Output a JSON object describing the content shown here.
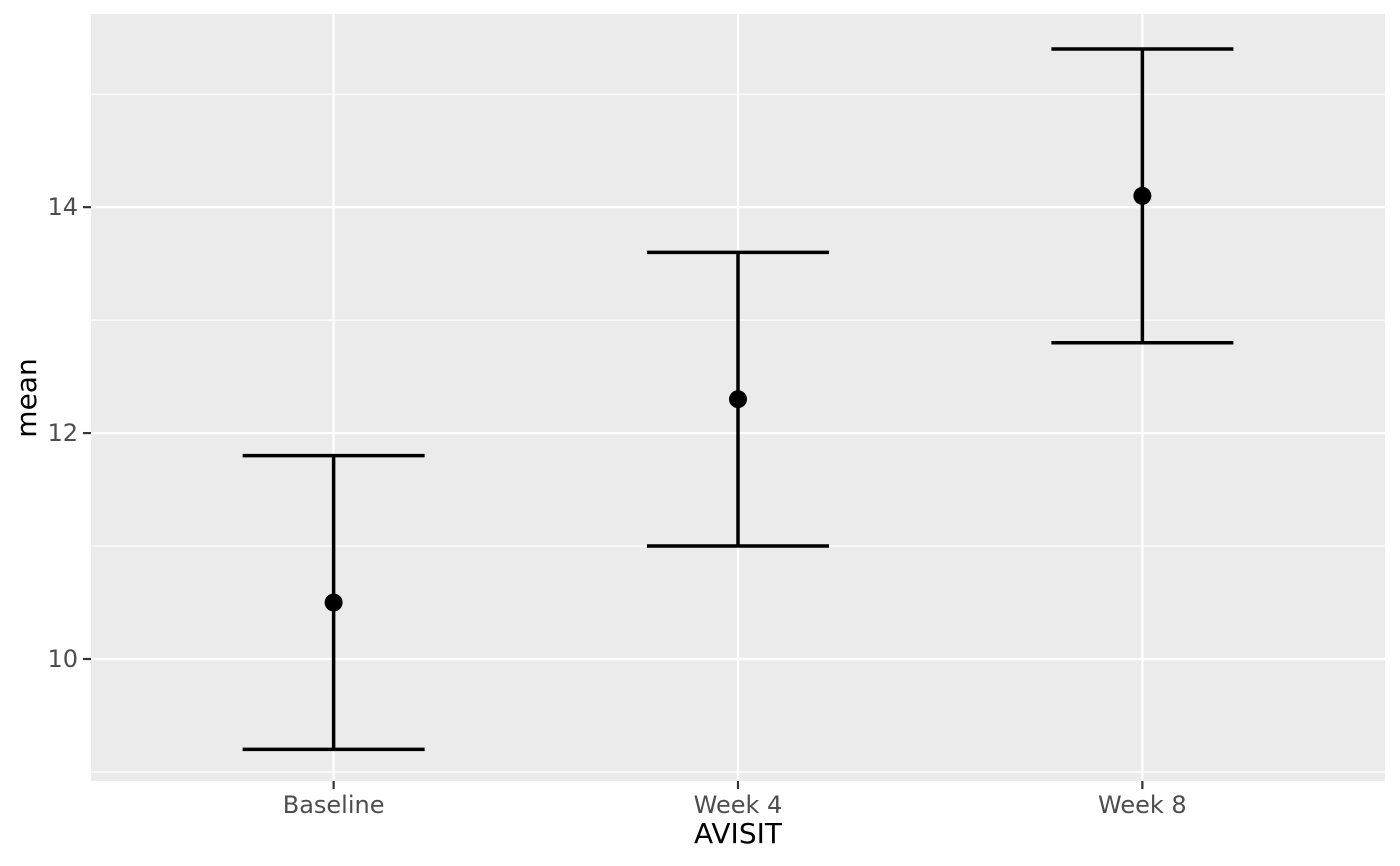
{
  "figure": {
    "background": "#FFFFFF"
  },
  "chart_data": {
    "type": "scatter",
    "subtype": "point-with-errorbar",
    "title": "",
    "xlabel": "AVISIT",
    "ylabel": "mean",
    "categories": [
      "Baseline",
      "Week 4",
      "Week 8"
    ],
    "series": [
      {
        "name": "mean",
        "values": [
          10.5,
          12.3,
          14.1
        ],
        "lower": [
          9.2,
          11.0,
          12.8
        ],
        "upper": [
          11.8,
          13.6,
          15.4
        ]
      }
    ],
    "y_axis": {
      "ticks": [
        10,
        12,
        14
      ],
      "tick_labels": [
        "10",
        "12",
        "14"
      ],
      "minor_breaks": [
        9,
        11,
        13,
        15
      ],
      "lim": [
        8.92,
        15.71
      ]
    },
    "x_axis": {
      "type": "discrete",
      "expand": 0.6
    },
    "legend": "none",
    "grid": "on",
    "style": {
      "panel_bg": "#EBEBEB",
      "grid_color": "#FFFFFF",
      "point_color": "#000000",
      "errorbar_color": "#000000",
      "tick_label_color": "#4D4D4D",
      "axis_title_color": "#000000",
      "tick_mark_color": "#333333"
    }
  }
}
